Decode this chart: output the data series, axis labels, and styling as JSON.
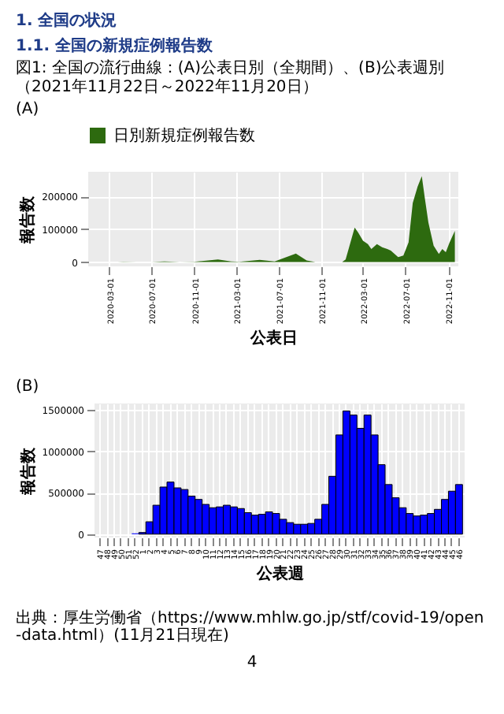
{
  "chart_data": [
    {
      "type": "area",
      "title": "(A)",
      "annotations": [
        "1. 全国の状況",
        "1.1. 全国の新規症例報告数",
        "図1: 全国の流行曲線：(A)公表日別（全期間）、(B)公表週別（2021年11月22日～2022年11月20日）"
      ],
      "xlabel": "公表日",
      "ylabel": "報告数",
      "legend": "top",
      "grid": true,
      "x": [
        "2020-01-16",
        "2020-03-25",
        "2020-04-11",
        "2020-05-20",
        "2020-07-01",
        "2020-08-07",
        "2020-09-20",
        "2020-11-01",
        "2021-01-08",
        "2021-02-15",
        "2021-03-10",
        "2021-05-08",
        "2021-06-20",
        "2021-08-20",
        "2021-09-20",
        "2021-10-15",
        "2021-12-01",
        "2021-12-31",
        "2022-01-10",
        "2022-01-20",
        "2022-02-05",
        "2022-02-15",
        "2022-03-01",
        "2022-03-15",
        "2022-03-25",
        "2022-04-10",
        "2022-04-25",
        "2022-05-10",
        "2022-05-20",
        "2022-06-10",
        "2022-06-25",
        "2022-07-10",
        "2022-07-22",
        "2022-08-05",
        "2022-08-17",
        "2022-08-25",
        "2022-09-05",
        "2022-09-20",
        "2022-10-05",
        "2022-10-15",
        "2022-10-25",
        "2022-11-05",
        "2022-11-20"
      ],
      "series": [
        {
          "name": "日別新規症例報告数",
          "color": "#2d6a0f",
          "values": [
            0,
            0,
            1000,
            0,
            0,
            2000,
            0,
            1000,
            8000,
            2000,
            1000,
            7000,
            2000,
            26000,
            5000,
            0,
            0,
            0,
            8000,
            45000,
            105000,
            90000,
            65000,
            55000,
            40000,
            55000,
            45000,
            40000,
            35000,
            15000,
            20000,
            60000,
            180000,
            230000,
            262000,
            200000,
            120000,
            50000,
            25000,
            40000,
            30000,
            60000,
            95000
          ]
        }
      ],
      "xlim": [
        "2020-01-01",
        "2022-11-30"
      ],
      "xticks": [
        "2020-03-01",
        "2020-07-01",
        "2020-11-01",
        "2021-03-01",
        "2021-07-01",
        "2021-11-01",
        "2022-03-01",
        "2022-07-01",
        "2022-11-01"
      ],
      "ylim": [
        -13000,
        275000
      ],
      "yticks": [
        0,
        100000,
        200000
      ]
    },
    {
      "type": "bar",
      "title": "(B)",
      "annotations": [
        "出典：厚生労働省（https://www.mhlw.go.jp/stf/covid-19/open-data.html）(11月21日現在)",
        "4"
      ],
      "xlabel": "公表週",
      "ylabel": "報告数",
      "grid": true,
      "categories": [
        "47",
        "48",
        "49",
        "50",
        "51",
        "52",
        "1",
        "2",
        "3",
        "4",
        "5",
        "6",
        "7",
        "8",
        "9",
        "10",
        "11",
        "12",
        "13",
        "14",
        "15",
        "16",
        "17",
        "18",
        "19",
        "20",
        "21",
        "22",
        "23",
        "24",
        "25",
        "26",
        "27",
        "28",
        "29",
        "30",
        "31",
        "32",
        "33",
        "34",
        "35",
        "36",
        "37",
        "38",
        "39",
        "40",
        "41",
        "42",
        "43",
        "44",
        "45",
        "46"
      ],
      "series": [
        {
          "color": "#0000ff",
          "values": [
            0,
            0,
            0,
            0,
            0,
            10000,
            20000,
            150000,
            350000,
            570000,
            630000,
            560000,
            540000,
            460000,
            420000,
            360000,
            320000,
            330000,
            350000,
            330000,
            310000,
            260000,
            230000,
            240000,
            270000,
            250000,
            180000,
            140000,
            120000,
            120000,
            130000,
            180000,
            360000,
            700000,
            1200000,
            1490000,
            1440000,
            1280000,
            1440000,
            1200000,
            840000,
            600000,
            440000,
            320000,
            250000,
            220000,
            230000,
            250000,
            300000,
            420000,
            520000,
            600000
          ]
        }
      ],
      "ylim": [
        -40000,
        1580000
      ],
      "yticks": [
        0,
        500000,
        1000000,
        1500000
      ]
    }
  ]
}
